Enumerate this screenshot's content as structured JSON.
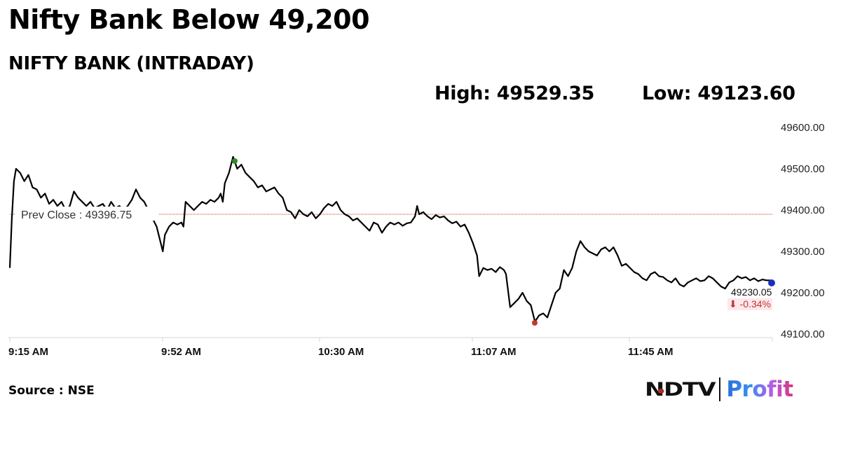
{
  "headline": "Nifty Bank Below 49,200",
  "subtitle": "NIFTY BANK (INTRADAY)",
  "stats": {
    "high_label": "High: 49529.35",
    "low_label": "Low: 49123.60"
  },
  "source": "Source : NSE",
  "logo": {
    "left": "NDTV",
    "right": "Profit"
  },
  "chart_data": {
    "type": "line",
    "title": "NIFTY BANK (INTRADAY)",
    "xlabel": "",
    "ylabel": "",
    "ylim": [
      49100,
      49600
    ],
    "y_ticks": [
      "49600.00",
      "49500.00",
      "49400.00",
      "49300.00",
      "49200.00",
      "49100.00"
    ],
    "x_ticks": [
      "9:15 AM",
      "9:52 AM",
      "10:30 AM",
      "11:07 AM",
      "11:45 AM"
    ],
    "grid": false,
    "legend": null,
    "prev_close": {
      "label": "Prev Close : 49396.75",
      "value": 49396.75,
      "color": "#c0392b"
    },
    "high": {
      "value": 49529.35,
      "time_min": 54,
      "color": "#2e8b2e"
    },
    "low": {
      "value": 49123.6,
      "time_min": 127,
      "color": "#c0392b"
    },
    "last": {
      "value_label": "49230.05",
      "change_label": "⬇ -0.34%",
      "value": 49230.05,
      "time_min": 184,
      "color": "#1a2fbf"
    },
    "series": [
      {
        "name": "NIFTY BANK",
        "x_unit": "minutes since 9:15 AM",
        "points": [
          [
            0,
            49260
          ],
          [
            0.5,
            49380
          ],
          [
            1,
            49470
          ],
          [
            1.5,
            49500
          ],
          [
            2.5,
            49490
          ],
          [
            3.5,
            49470
          ],
          [
            4.5,
            49485
          ],
          [
            5.5,
            49455
          ],
          [
            6.5,
            49450
          ],
          [
            7.5,
            49430
          ],
          [
            8.5,
            49440
          ],
          [
            9.5,
            49415
          ],
          [
            10.5,
            49425
          ],
          [
            11.5,
            49410
          ],
          [
            12.5,
            49420
          ],
          [
            13.5,
            49400
          ],
          [
            14.5,
            49410
          ],
          [
            15.5,
            49445
          ],
          [
            16.5,
            49430
          ],
          [
            17.5,
            49420
          ],
          [
            18.5,
            49410
          ],
          [
            19.5,
            49420
          ],
          [
            20.5,
            49405
          ],
          [
            21.5,
            49410
          ],
          [
            22.5,
            49415
          ],
          [
            23.5,
            49400
          ],
          [
            24.5,
            49420
          ],
          [
            25.5,
            49405
          ],
          [
            26.5,
            49410
          ],
          [
            27.5,
            49400
          ],
          [
            28.5,
            49410
          ],
          [
            29.5,
            49425
          ],
          [
            30.5,
            49450
          ],
          [
            31.5,
            49430
          ],
          [
            32.5,
            49420
          ],
          [
            33.5,
            49400
          ],
          [
            34.5,
            49380
          ],
          [
            35.5,
            49360
          ],
          [
            36.5,
            49320
          ],
          [
            37,
            49300
          ],
          [
            37.5,
            49340
          ],
          [
            38.5,
            49360
          ],
          [
            39.5,
            49370
          ],
          [
            40.5,
            49365
          ],
          [
            41.5,
            49370
          ],
          [
            42,
            49360
          ],
          [
            42.5,
            49420
          ],
          [
            43.5,
            49410
          ],
          [
            44.5,
            49400
          ],
          [
            45.5,
            49410
          ],
          [
            46.5,
            49420
          ],
          [
            47.5,
            49415
          ],
          [
            48.5,
            49425
          ],
          [
            49.5,
            49420
          ],
          [
            50.5,
            49430
          ],
          [
            51,
            49440
          ],
          [
            51.5,
            49420
          ],
          [
            52,
            49465
          ],
          [
            53,
            49490
          ],
          [
            54,
            49529
          ],
          [
            55,
            49500
          ],
          [
            56,
            49510
          ],
          [
            57,
            49490
          ],
          [
            58,
            49480
          ],
          [
            59,
            49470
          ],
          [
            60,
            49455
          ],
          [
            61,
            49460
          ],
          [
            62,
            49445
          ],
          [
            63,
            49450
          ],
          [
            64,
            49455
          ],
          [
            65,
            49440
          ],
          [
            66,
            49430
          ],
          [
            67,
            49400
          ],
          [
            68,
            49395
          ],
          [
            69,
            49380
          ],
          [
            70,
            49400
          ],
          [
            71,
            49390
          ],
          [
            72,
            49385
          ],
          [
            73,
            49395
          ],
          [
            74,
            49380
          ],
          [
            75,
            49390
          ],
          [
            76,
            49405
          ],
          [
            77,
            49415
          ],
          [
            78,
            49410
          ],
          [
            79,
            49420
          ],
          [
            80,
            49400
          ],
          [
            81,
            49390
          ],
          [
            82,
            49385
          ],
          [
            83,
            49375
          ],
          [
            84,
            49380
          ],
          [
            85,
            49370
          ],
          [
            86,
            49360
          ],
          [
            87,
            49350
          ],
          [
            88,
            49370
          ],
          [
            89,
            49365
          ],
          [
            90,
            49345
          ],
          [
            91,
            49360
          ],
          [
            92,
            49370
          ],
          [
            93,
            49365
          ],
          [
            94,
            49370
          ],
          [
            95,
            49362
          ],
          [
            96,
            49368
          ],
          [
            97,
            49370
          ],
          [
            98,
            49385
          ],
          [
            98.5,
            49410
          ],
          [
            99,
            49390
          ],
          [
            100,
            49395
          ],
          [
            101,
            49385
          ],
          [
            102,
            49378
          ],
          [
            103,
            49388
          ],
          [
            104,
            49382
          ],
          [
            105,
            49385
          ],
          [
            106,
            49375
          ],
          [
            107,
            49368
          ],
          [
            108,
            49372
          ],
          [
            109,
            49360
          ],
          [
            110,
            49365
          ],
          [
            111,
            49345
          ],
          [
            112,
            49320
          ],
          [
            113,
            49290
          ],
          [
            113.5,
            49240
          ],
          [
            114.5,
            49260
          ],
          [
            115.5,
            49255
          ],
          [
            116.5,
            49258
          ],
          [
            117.5,
            49250
          ],
          [
            118.5,
            49262
          ],
          [
            119.5,
            49255
          ],
          [
            120,
            49245
          ],
          [
            121,
            49165
          ],
          [
            122,
            49175
          ],
          [
            123,
            49185
          ],
          [
            124,
            49200
          ],
          [
            125,
            49180
          ],
          [
            126,
            49170
          ],
          [
            127,
            49130
          ],
          [
            128,
            49145
          ],
          [
            129,
            49150
          ],
          [
            130,
            49140
          ],
          [
            131,
            49170
          ],
          [
            132,
            49200
          ],
          [
            133,
            49210
          ],
          [
            134,
            49255
          ],
          [
            135,
            49240
          ],
          [
            136,
            49260
          ],
          [
            137,
            49300
          ],
          [
            138,
            49325
          ],
          [
            139,
            49310
          ],
          [
            140,
            49300
          ],
          [
            141,
            49295
          ],
          [
            142,
            49290
          ],
          [
            143,
            49305
          ],
          [
            144,
            49310
          ],
          [
            145,
            49300
          ],
          [
            146,
            49310
          ],
          [
            147,
            49290
          ],
          [
            148,
            49265
          ],
          [
            149,
            49270
          ],
          [
            150,
            49260
          ],
          [
            151,
            49250
          ],
          [
            152,
            49245
          ],
          [
            153,
            49235
          ],
          [
            154,
            49230
          ],
          [
            155,
            49245
          ],
          [
            156,
            49250
          ],
          [
            157,
            49240
          ],
          [
            158,
            49238
          ],
          [
            159,
            49230
          ],
          [
            160,
            49225
          ],
          [
            161,
            49235
          ],
          [
            162,
            49220
          ],
          [
            163,
            49215
          ],
          [
            164,
            49225
          ],
          [
            165,
            49230
          ],
          [
            166,
            49235
          ],
          [
            167,
            49228
          ],
          [
            168,
            49230
          ],
          [
            169,
            49240
          ],
          [
            170,
            49235
          ],
          [
            171,
            49225
          ],
          [
            172,
            49215
          ],
          [
            173,
            49210
          ],
          [
            174,
            49225
          ],
          [
            175,
            49230
          ],
          [
            176,
            49240
          ],
          [
            177,
            49235
          ],
          [
            178,
            49238
          ],
          [
            179,
            49230
          ],
          [
            180,
            49235
          ],
          [
            181,
            49228
          ],
          [
            182,
            49232
          ],
          [
            183,
            49230
          ],
          [
            184,
            49230
          ]
        ]
      }
    ]
  }
}
